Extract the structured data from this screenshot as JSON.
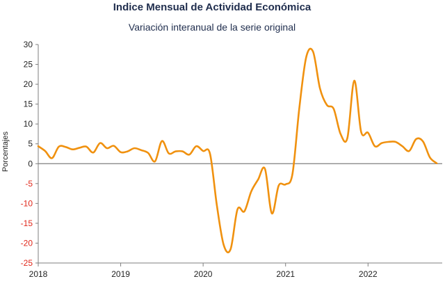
{
  "chart_data": {
    "type": "line",
    "title": "Indice Mensual de  Actividad Económica",
    "subtitle": "Variación interanual de la serie original",
    "ylabel": "Porcentajes",
    "xlabel": "",
    "ylim": [
      -25,
      30
    ],
    "xlim": [
      2018.0,
      2022.9
    ],
    "yticks": [
      30,
      25,
      20,
      15,
      10,
      5,
      0,
      -5,
      -10,
      -15,
      -20,
      -25
    ],
    "xticks": [
      "2018",
      "2019",
      "2020",
      "2021",
      "2022"
    ],
    "grid": false,
    "legend": "none",
    "colors": {
      "line": "#f0910f",
      "negative_tick": "#e0281b",
      "positive_tick": "#222222",
      "zero_line": "#7f7f7f"
    },
    "series": [
      {
        "x": [
          "2018-01",
          "2018-02",
          "2018-03",
          "2018-04",
          "2018-05",
          "2018-06",
          "2018-07",
          "2018-08",
          "2018-09",
          "2018-10",
          "2018-11",
          "2018-12",
          "2019-01",
          "2019-02",
          "2019-03",
          "2019-04",
          "2019-05",
          "2019-06",
          "2019-07",
          "2019-08",
          "2019-09",
          "2019-10",
          "2019-11",
          "2019-12",
          "2020-01",
          "2020-02",
          "2020-03",
          "2020-04",
          "2020-05",
          "2020-06",
          "2020-07",
          "2020-08",
          "2020-09",
          "2020-10",
          "2020-11",
          "2020-12",
          "2021-01",
          "2021-02",
          "2021-03",
          "2021-04",
          "2021-05",
          "2021-06",
          "2021-07",
          "2021-08",
          "2021-09",
          "2021-10",
          "2021-11",
          "2021-12",
          "2022-01",
          "2022-02",
          "2022-03",
          "2022-04",
          "2022-05",
          "2022-06",
          "2022-07",
          "2022-08",
          "2022-09",
          "2022-10",
          "2022-11"
        ],
        "values": [
          4.4,
          3.2,
          1.4,
          4.3,
          4.2,
          3.6,
          4.0,
          4.3,
          2.8,
          5.2,
          3.9,
          4.5,
          2.9,
          3.1,
          3.9,
          3.4,
          2.7,
          0.6,
          5.7,
          2.6,
          3.1,
          3.1,
          2.3,
          4.4,
          3.2,
          2.5,
          -10.5,
          -20.5,
          -21.5,
          -11.5,
          -12.0,
          -7.0,
          -4.0,
          -1.3,
          -12.5,
          -5.5,
          -5.2,
          -2.6,
          14.0,
          26.8,
          28.2,
          19.0,
          14.8,
          13.8,
          7.5,
          6.5,
          20.9,
          8.0,
          7.8,
          4.4,
          5.2,
          5.5,
          5.5,
          4.4,
          3.2,
          6.2,
          5.6,
          1.6,
          0.1
        ]
      }
    ]
  }
}
